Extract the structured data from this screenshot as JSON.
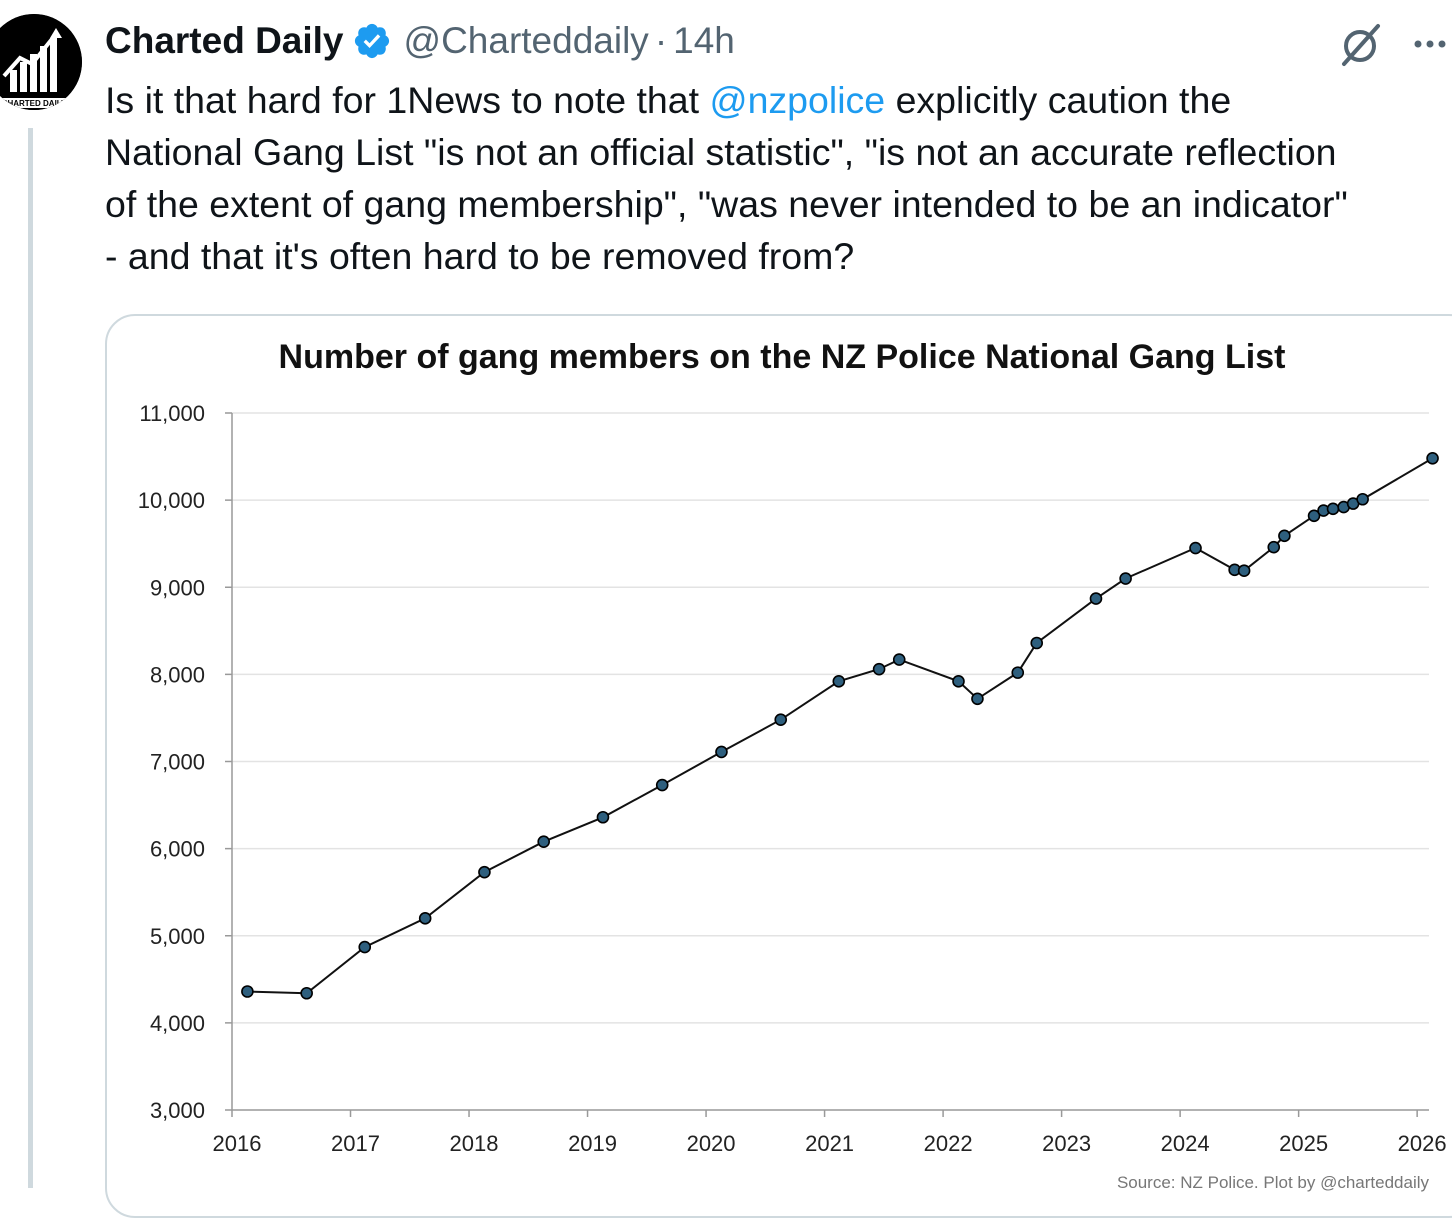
{
  "tweet": {
    "author_name": "Charted Daily",
    "handle": "@Charteddaily",
    "separator": "·",
    "time": "14h",
    "avatar_text": "CHARTED DAILY",
    "text_lines": [
      {
        "before": "Is it that hard for 1News to note that ",
        "mention": "@nzpolice",
        "after": " explicitly caution the"
      },
      {
        "before": "National Gang List \"is not an official statistic\", \"is not an accurate reflection",
        "mention": "",
        "after": ""
      },
      {
        "before": "of the extent of gang membership\", \"was never intended to be an indicator\"",
        "mention": "",
        "after": ""
      },
      {
        "before": "- and that it's often hard to be removed from?",
        "mention": "",
        "after": ""
      }
    ],
    "more_label": "···"
  },
  "colors": {
    "mention": "#1d9bf0",
    "verified": "#1d9bf0",
    "marker_fill": "#2e5f7e",
    "line": "#111111"
  },
  "chart_data": {
    "type": "line",
    "title": "Number of gang members on the NZ Police National Gang List",
    "source": "Source: NZ Police. Plot by @charteddaily",
    "xlabel": "",
    "ylabel": "",
    "xlim": [
      2016,
      2026.1
    ],
    "ylim": [
      3000,
      11000
    ],
    "yticks": [
      3000,
      4000,
      5000,
      6000,
      7000,
      8000,
      9000,
      10000,
      11000
    ],
    "ytick_labels": [
      "3,000",
      "4,000",
      "5,000",
      "6,000",
      "7,000",
      "8,000",
      "9,000",
      "10,000",
      "11,000"
    ],
    "xticks": [
      2016,
      2017,
      2018,
      2019,
      2020,
      2021,
      2022,
      2023,
      2024,
      2025,
      2026
    ],
    "xtick_labels": [
      "2016",
      "2017",
      "2018",
      "2019",
      "2020",
      "2021",
      "2022",
      "2023",
      "2024",
      "2025",
      "2026"
    ],
    "grid": true,
    "series": [
      {
        "name": "Gang members",
        "x": [
          2016.13,
          2016.63,
          2017.12,
          2017.63,
          2018.13,
          2018.63,
          2019.13,
          2019.63,
          2020.13,
          2020.63,
          2021.12,
          2021.46,
          2021.63,
          2022.13,
          2022.29,
          2022.63,
          2022.79,
          2023.29,
          2023.54,
          2024.13,
          2024.46,
          2024.54,
          2024.79,
          2024.88,
          2025.13,
          2025.21,
          2025.29,
          2025.38,
          2025.46,
          2025.54,
          2026.13
        ],
        "y": [
          4360,
          4340,
          4870,
          5200,
          5730,
          6080,
          6360,
          6730,
          7110,
          7480,
          7920,
          8060,
          8170,
          7920,
          7720,
          8020,
          8360,
          8870,
          9100,
          9450,
          9200,
          9190,
          9460,
          9590,
          9820,
          9880,
          9900,
          9920,
          9960,
          10010,
          10480
        ]
      }
    ]
  }
}
